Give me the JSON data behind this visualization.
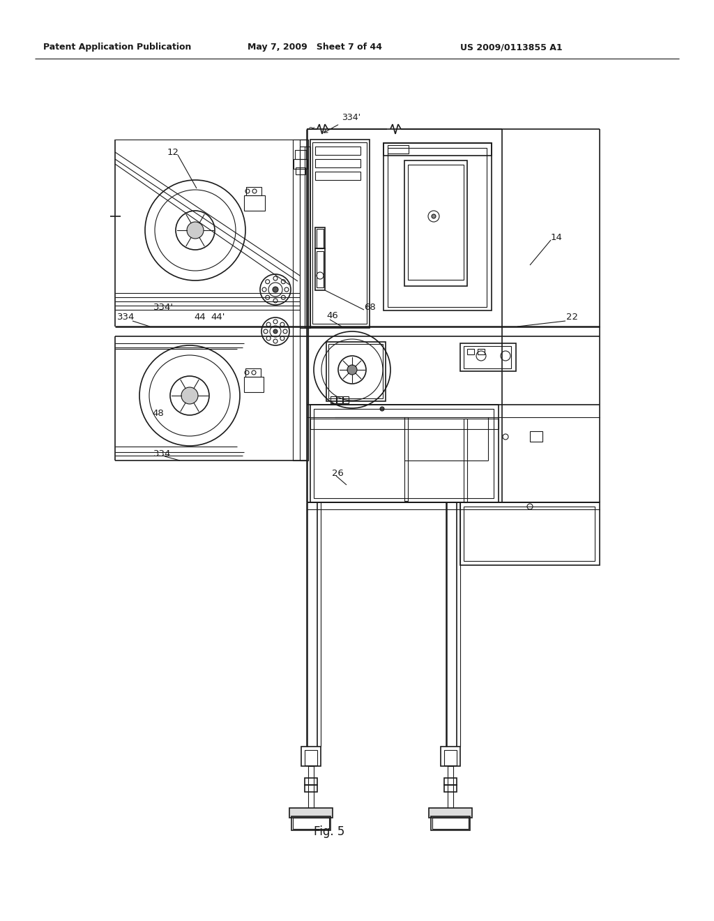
{
  "bg_color": "#ffffff",
  "line_color": "#1a1a1a",
  "header_left": "Patent Application Publication",
  "header_mid": "May 7, 2009   Sheet 7 of 44",
  "header_right": "US 2009/0113855 A1",
  "fig_label": "Fig. 5"
}
